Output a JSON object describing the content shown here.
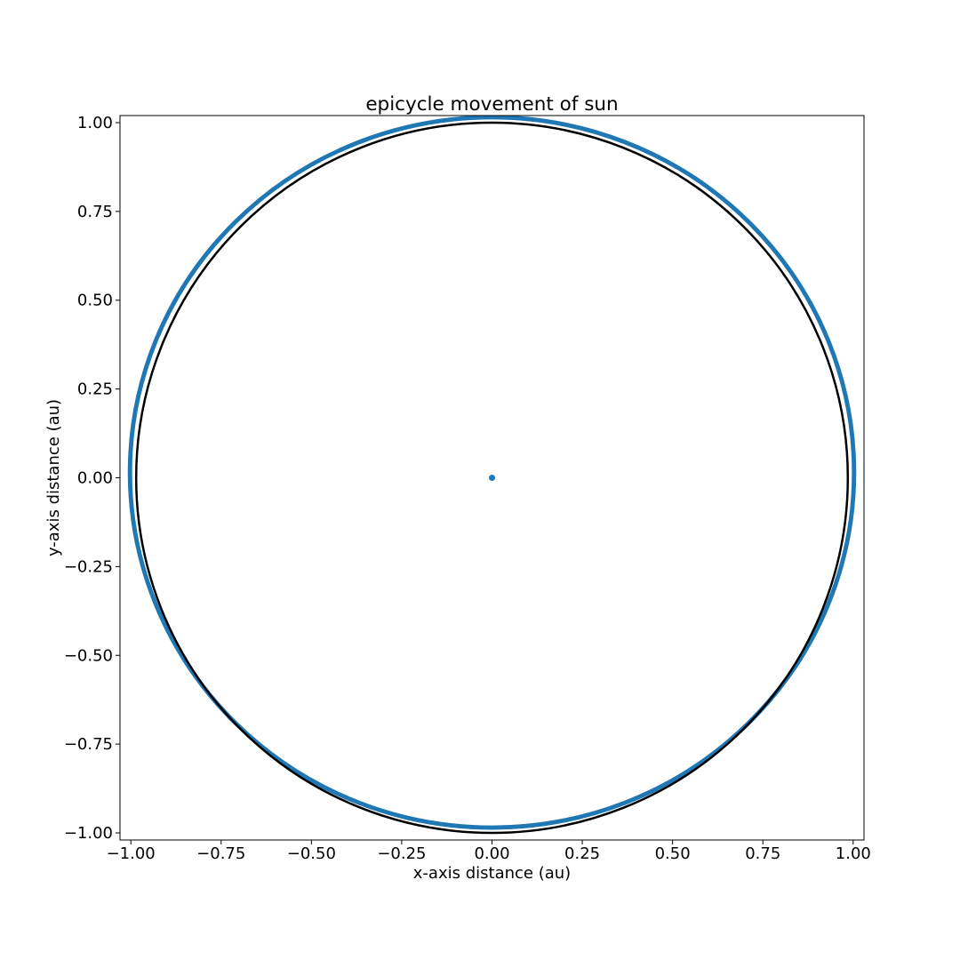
{
  "chart_data": {
    "type": "scatter",
    "title": "epicycle movement of sun",
    "xlabel": "x-axis distance (au)",
    "ylabel": "y-axis distance (au)",
    "xlim": [
      -1.03,
      1.03
    ],
    "ylim": [
      -1.02,
      1.02
    ],
    "xticks": [
      -1.0,
      -0.75,
      -0.5,
      -0.25,
      0.0,
      0.25,
      0.5,
      0.75,
      1.0
    ],
    "yticks": [
      -1.0,
      -0.75,
      -0.5,
      -0.25,
      0.0,
      0.25,
      0.5,
      0.75,
      1.0
    ],
    "xtick_labels": [
      "−1.00",
      "−0.75",
      "−0.50",
      "−0.25",
      "0.00",
      "0.25",
      "0.50",
      "0.75",
      "1.00"
    ],
    "ytick_labels": [
      "−1.00",
      "−0.75",
      "−0.50",
      "−0.25",
      "0.00",
      "0.25",
      "0.50",
      "0.75",
      "1.00"
    ],
    "grid": false,
    "series": [
      {
        "marker": "circle",
        "color": "#1f77b4",
        "x": [
          0.0
        ],
        "y": [
          0.0
        ]
      },
      {
        "marker": "circle",
        "color": "#1f77b4",
        "shape": "circle-trace",
        "center": [
          0.0,
          0.015
        ],
        "radius": 1.0,
        "band_width": 0.012
      },
      {
        "line": "circle",
        "color": "#000000",
        "center": [
          0.0,
          0.0
        ],
        "radius": 1.0
      }
    ]
  }
}
